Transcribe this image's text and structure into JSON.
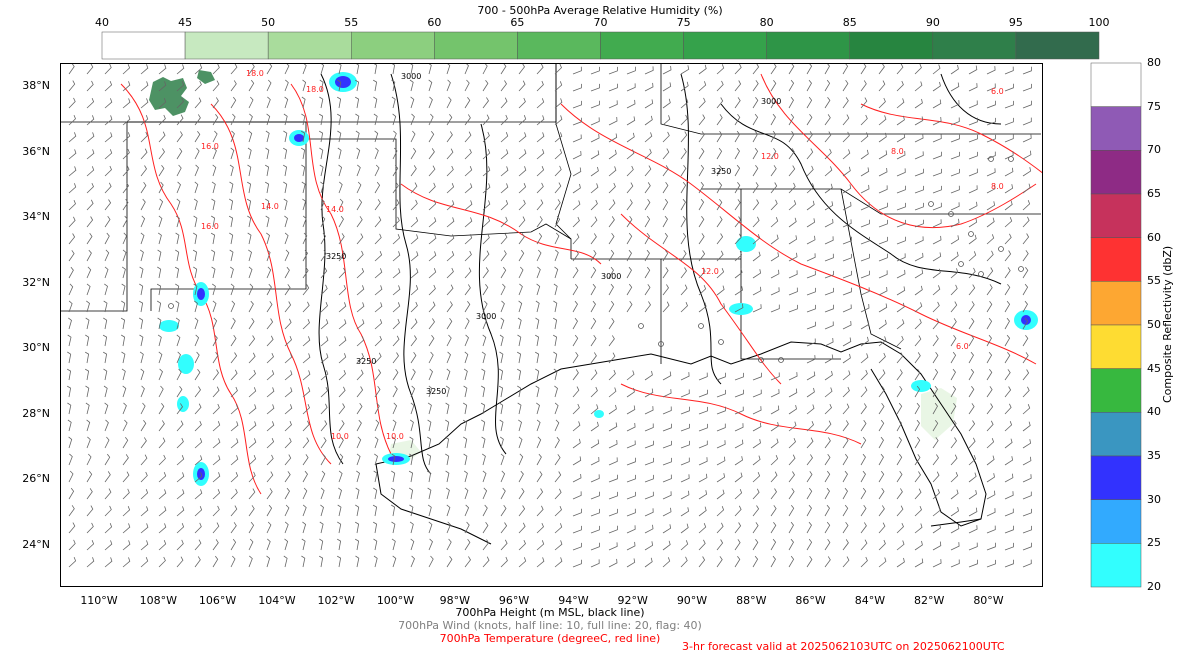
{
  "humidity_colorbar": {
    "title": "700 - 500hPa Average Relative Humidity (%)",
    "ticks": [
      "40",
      "45",
      "50",
      "55",
      "60",
      "65",
      "70",
      "75",
      "80",
      "85",
      "90",
      "95",
      "100"
    ],
    "colors": [
      "#ffffff",
      "#e5f4e1",
      "#c7e9c0",
      "#a9dc9c",
      "#8ccf7f",
      "#74c46c",
      "#5ab85d",
      "#41ab4f",
      "#35a24b",
      "#2e9547",
      "#278540",
      "#2f7f4a",
      "#326b4d"
    ]
  },
  "reflectivity_colorbar": {
    "title": "Composite Reflectivity (dbZ)",
    "ticks": [
      "80",
      "75",
      "70",
      "65",
      "60",
      "55",
      "50",
      "45",
      "40",
      "35",
      "30",
      "25",
      "20"
    ],
    "colors": [
      "#ffffff",
      "#8f5ab5",
      "#8e2b85",
      "#c6325c",
      "#fe3232",
      "#fda732",
      "#fedc32",
      "#37b83f",
      "#3a96c1",
      "#3232fe",
      "#32aafe",
      "#32fefe"
    ]
  },
  "map": {
    "lat_labels": [
      "38°N",
      "36°N",
      "34°N",
      "32°N",
      "30°N",
      "28°N",
      "26°N",
      "24°N"
    ],
    "lon_labels": [
      "110°W",
      "108°W",
      "106°W",
      "104°W",
      "102°W",
      "100°W",
      "98°W",
      "96°W",
      "94°W",
      "92°W",
      "90°W",
      "88°W",
      "86°W",
      "84°W",
      "82°W",
      "80°W"
    ],
    "height_contour_labels": [
      "3000",
      "3000",
      "3000",
      "3250",
      "3250",
      "3250",
      "3250",
      "3000"
    ],
    "temp_contour_labels": [
      "18.0",
      "18.0",
      "16.0",
      "14.0",
      "14.0",
      "12.0",
      "12.0",
      "10.0",
      "10.0",
      "8.0",
      "8.0",
      "6.0",
      "6.0",
      "16.0"
    ],
    "colors": {
      "coast": "#000000",
      "temperature": "#ff2020",
      "height": "#000000",
      "wind": "#666666"
    }
  },
  "captions": {
    "height": "700hPa Height (m MSL, black line)",
    "wind": "700hPa Wind (knots, half line: 10, full line: 20, flag: 40)",
    "temperature": "700hPa Temperature (degreeC, red line)",
    "valid": "3-hr forecast valid at 2025062103UTC on 2025062100UTC",
    "colors": {
      "height": "#000000",
      "wind": "#808080",
      "temperature": "#ff0000",
      "valid": "#ff0000"
    }
  }
}
